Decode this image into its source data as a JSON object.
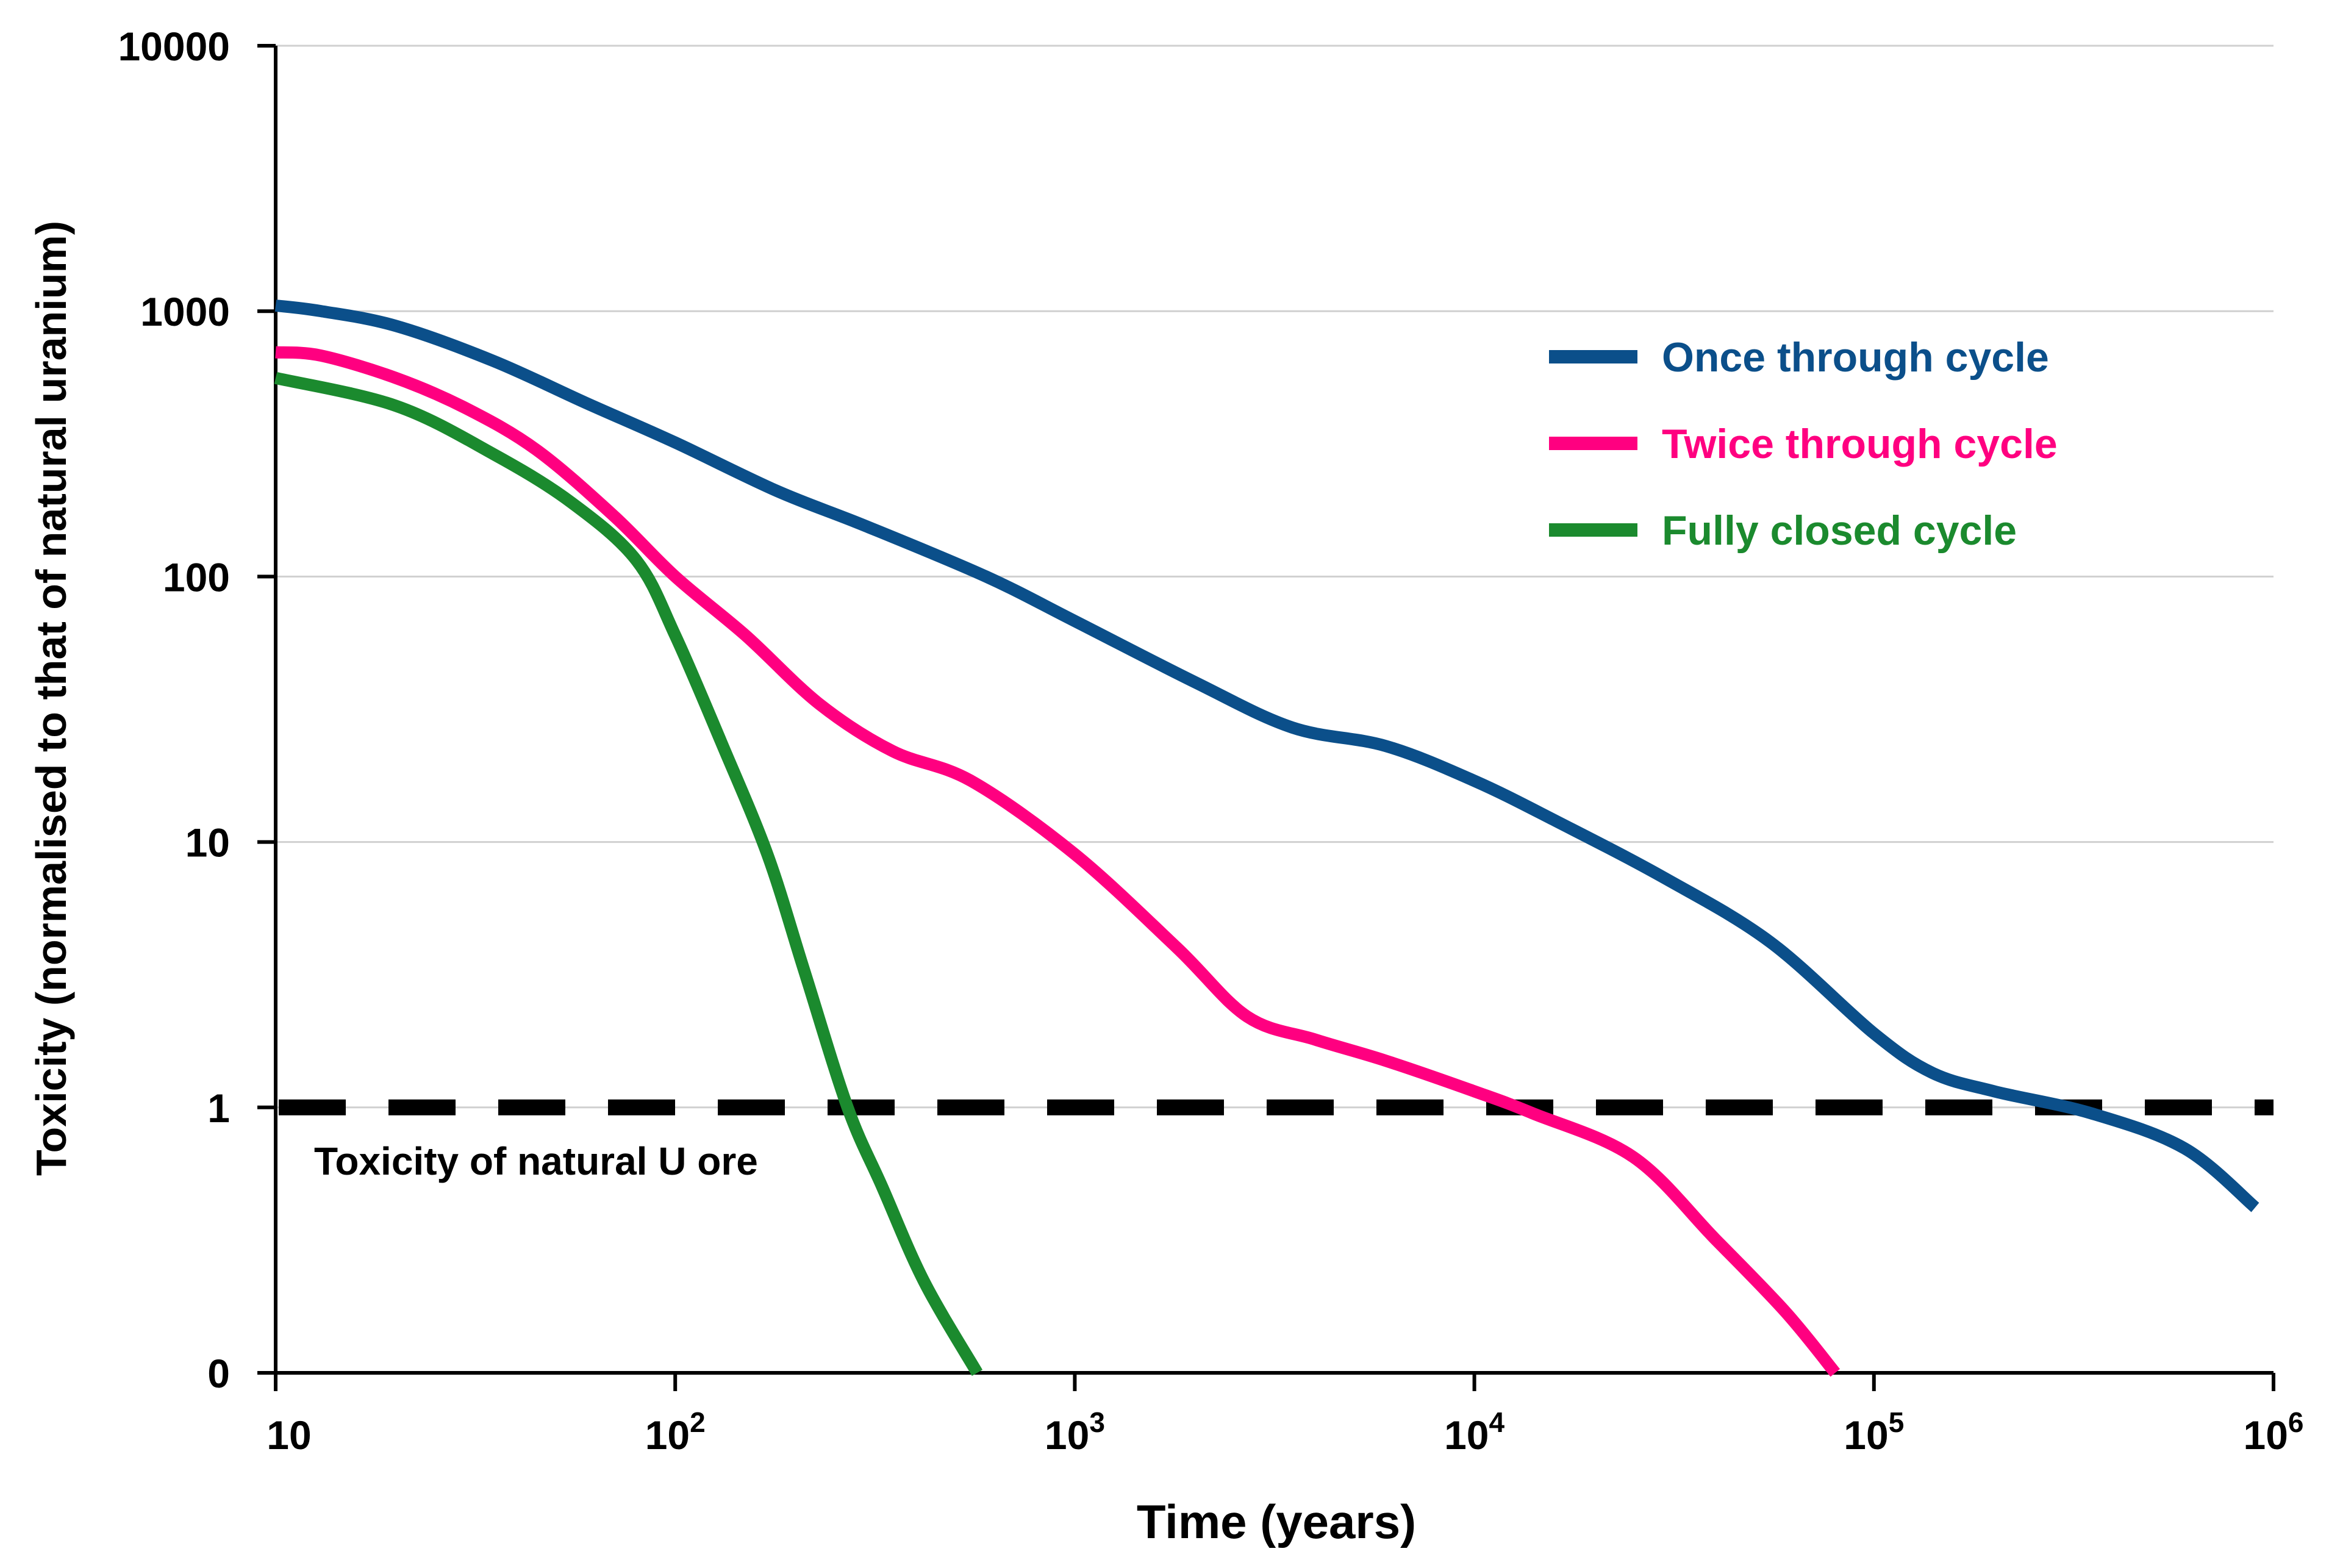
{
  "chart_data": {
    "type": "line",
    "title": "",
    "xlabel": "Time (years)",
    "ylabel": "Toxicity (normalised to that of natural uranium)",
    "xscale": "log",
    "xlim": [
      10,
      1000000
    ],
    "y_ticks": [
      {
        "label": "0",
        "value": 0.1
      },
      {
        "label": "1",
        "value": 1
      },
      {
        "label": "10",
        "value": 10
      },
      {
        "label": "100",
        "value": 100
      },
      {
        "label": "1000",
        "value": 1000
      },
      {
        "label": "10000",
        "value": 10000
      }
    ],
    "x_ticks": [
      {
        "base": "10",
        "exp": "",
        "value": 10
      },
      {
        "base": "10",
        "exp": "2",
        "value": 100
      },
      {
        "base": "10",
        "exp": "3",
        "value": 1000
      },
      {
        "base": "10",
        "exp": "4",
        "value": 10000
      },
      {
        "base": "10",
        "exp": "5",
        "value": 100000
      },
      {
        "base": "10",
        "exp": "6",
        "value": 1000000
      }
    ],
    "grid": "horizontal",
    "legend_position": "top-right",
    "series": [
      {
        "name": "Once through cycle",
        "color": "#0b4f8a",
        "points": [
          [
            10,
            1050
          ],
          [
            13,
            1000
          ],
          [
            20,
            880
          ],
          [
            35,
            650
          ],
          [
            60,
            450
          ],
          [
            100,
            320
          ],
          [
            180,
            210
          ],
          [
            300,
            155
          ],
          [
            600,
            100
          ],
          [
            1000,
            68
          ],
          [
            2000,
            40
          ],
          [
            3500,
            27
          ],
          [
            6000,
            23
          ],
          [
            10000,
            17
          ],
          [
            16000,
            12
          ],
          [
            30000,
            7.3
          ],
          [
            55000,
            4.2
          ],
          [
            100000,
            1.9
          ],
          [
            140000,
            1.35
          ],
          [
            200000,
            1.15
          ],
          [
            350000,
            0.95
          ],
          [
            600000,
            0.7
          ],
          [
            900000,
            0.42
          ]
        ]
      },
      {
        "name": "Twice through cycle",
        "color": "#ff0080",
        "points": [
          [
            10,
            700
          ],
          [
            13,
            680
          ],
          [
            20,
            560
          ],
          [
            30,
            430
          ],
          [
            45,
            300
          ],
          [
            70,
            170
          ],
          [
            100,
            100
          ],
          [
            150,
            60
          ],
          [
            230,
            33
          ],
          [
            350,
            22
          ],
          [
            550,
            17
          ],
          [
            1000,
            9
          ],
          [
            1800,
            4
          ],
          [
            2700,
            2.2
          ],
          [
            4000,
            1.8
          ],
          [
            6000,
            1.5
          ],
          [
            10000,
            1.15
          ],
          [
            14000,
            0.95
          ],
          [
            25000,
            0.65
          ],
          [
            40000,
            0.32
          ],
          [
            60000,
            0.17
          ],
          [
            80000,
            0.1
          ]
        ]
      },
      {
        "name": "Fully closed cycle",
        "color": "#1b8a2e",
        "points": [
          [
            10,
            560
          ],
          [
            20,
            440
          ],
          [
            35,
            290
          ],
          [
            55,
            190
          ],
          [
            80,
            115
          ],
          [
            100,
            60
          ],
          [
            130,
            24
          ],
          [
            170,
            9
          ],
          [
            210,
            3.3
          ],
          [
            270,
            1.0
          ],
          [
            330,
            0.5
          ],
          [
            420,
            0.22
          ],
          [
            570,
            0.1
          ]
        ]
      }
    ],
    "reference_line": {
      "value": 1,
      "style": "dashed",
      "label": "Toxicity of natural U ore",
      "color": "#000000"
    }
  }
}
